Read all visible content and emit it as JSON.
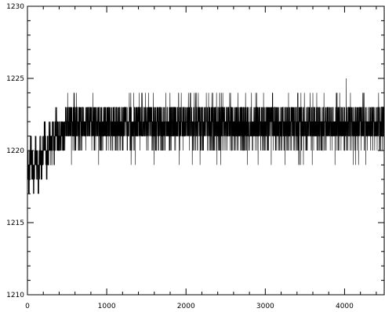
{
  "chart_data": {
    "type": "line",
    "title": "",
    "xlabel": "",
    "ylabel": "",
    "xlim": [
      0,
      4500
    ],
    "ylim": [
      1210,
      1230
    ],
    "grid": false,
    "x_ticks": [
      {
        "value": 0,
        "label": "0"
      },
      {
        "value": 1000,
        "label": "1000"
      },
      {
        "value": 2000,
        "label": "2000"
      },
      {
        "value": 3000,
        "label": "3000"
      },
      {
        "value": 4000,
        "label": "4000"
      }
    ],
    "y_ticks": [
      {
        "value": 1210,
        "label": "1210"
      },
      {
        "value": 1215,
        "label": "1215"
      },
      {
        "value": 1220,
        "label": "1220"
      },
      {
        "value": 1225,
        "label": "1225"
      },
      {
        "value": 1230,
        "label": "1230"
      }
    ],
    "x_minor_step": 200,
    "y_minor_step": 1,
    "series": [
      {
        "color": "#000000",
        "points_summary": "approx. 4500 integer-valued samples; dense oscillation between adjacent integer levels",
        "x": [
          0,
          20,
          40,
          60,
          80,
          100,
          120,
          140,
          160,
          180,
          200,
          220,
          240,
          260,
          280,
          300,
          320,
          340,
          360,
          380,
          400,
          450,
          500,
          550,
          600,
          650,
          700,
          750,
          800,
          850,
          900,
          950,
          1000,
          1100,
          1200,
          1300,
          1350,
          1400,
          1500,
          1600,
          1700,
          1800,
          1900,
          2000,
          2100,
          2200,
          2300,
          2400,
          2500,
          2600,
          2700,
          2800,
          2900,
          3000,
          3100,
          3200,
          3300,
          3400,
          3500,
          3600,
          3700,
          3800,
          3900,
          4000,
          4030,
          4100,
          4200,
          4300,
          4400,
          4480
        ],
        "y": [
          1219,
          1218,
          1220,
          1219,
          1218,
          1220,
          1219,
          1218,
          1220,
          1219,
          1220,
          1221,
          1219,
          1220,
          1221,
          1220,
          1221,
          1220,
          1222,
          1221,
          1221,
          1221,
          1222,
          1221,
          1222,
          1221,
          1222,
          1221,
          1222,
          1222,
          1221,
          1222,
          1222,
          1221,
          1222,
          1222,
          1219,
          1222,
          1222,
          1222,
          1222,
          1222,
          1222,
          1222,
          1222,
          1222,
          1222,
          1222,
          1222,
          1222,
          1222,
          1222,
          1222,
          1222,
          1222,
          1222,
          1222,
          1222,
          1222,
          1222,
          1222,
          1222,
          1222,
          1222,
          1225,
          1222,
          1222,
          1222,
          1222,
          1222
        ]
      }
    ]
  }
}
